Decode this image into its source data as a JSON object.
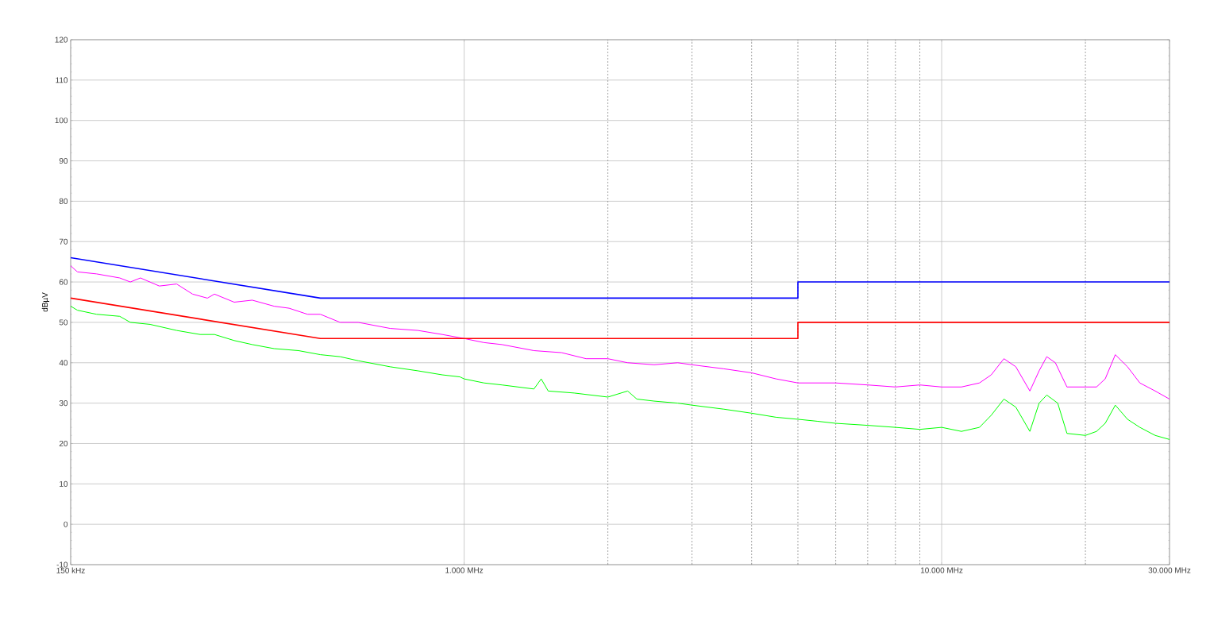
{
  "chart_data": {
    "type": "line",
    "ylabel": "dBµV",
    "log": "x",
    "grid": true,
    "xlim": [
      150,
      30000
    ],
    "ylim": [
      -10,
      120
    ],
    "xticks": [
      {
        "value": 150,
        "label": "150 kHz"
      },
      {
        "value": 1000,
        "label": "1.000 MHz"
      },
      {
        "value": 2000,
        "label": null
      },
      {
        "value": 3000,
        "label": null
      },
      {
        "value": 4000,
        "label": null
      },
      {
        "value": 5000,
        "label": null
      },
      {
        "value": 6000,
        "label": null
      },
      {
        "value": 7000,
        "label": null
      },
      {
        "value": 8000,
        "label": null
      },
      {
        "value": 9000,
        "label": null
      },
      {
        "value": 10000,
        "label": "10.000 MHz"
      },
      {
        "value": 20000,
        "label": null
      },
      {
        "value": 30000,
        "label": "30.000 MHz"
      }
    ],
    "yticks": [
      -10,
      0,
      10,
      20,
      30,
      40,
      50,
      60,
      70,
      80,
      90,
      100,
      110,
      120
    ],
    "series": [
      {
        "color": "#ff00ff",
        "x": [
          150,
          155,
          170,
          190,
          200,
          210,
          230,
          250,
          270,
          290,
          300,
          330,
          360,
          400,
          430,
          470,
          500,
          550,
          600,
          700,
          800,
          900,
          1000,
          1100,
          1200,
          1400,
          1600,
          1800,
          2000,
          2200,
          2500,
          2800,
          3000,
          3500,
          4000,
          4500,
          5000,
          6000,
          7000,
          8000,
          9000,
          10000,
          11000,
          12000,
          12700,
          13500,
          14300,
          15300,
          16000,
          16600,
          17300,
          18300,
          19500,
          21100,
          22000,
          23100,
          24500,
          26000,
          28000,
          30000
        ],
        "values": [
          64,
          62.5,
          62,
          61,
          60,
          61,
          59,
          59.5,
          57,
          56,
          57,
          55,
          55.5,
          54,
          53.5,
          52,
          52,
          50,
          50,
          48.5,
          48,
          47,
          46,
          45,
          44.5,
          43,
          42.5,
          41,
          41,
          40,
          39.5,
          40,
          39.5,
          38.5,
          37.5,
          36,
          35,
          35,
          34.5,
          34,
          34.5,
          34,
          34,
          35,
          37,
          41,
          39,
          33,
          38,
          41.5,
          40,
          34,
          34,
          34,
          36,
          42,
          39,
          35,
          33,
          31
        ]
      },
      {
        "color": "#00ff00",
        "x": [
          150,
          155,
          170,
          190,
          200,
          220,
          250,
          280,
          300,
          330,
          360,
          400,
          450,
          500,
          550,
          600,
          700,
          800,
          900,
          980,
          1000,
          1100,
          1200,
          1400,
          1450,
          1500,
          1700,
          2000,
          2200,
          2300,
          2500,
          2800,
          3000,
          3500,
          4000,
          4500,
          5000,
          5500,
          6000,
          7000,
          8000,
          9000,
          10000,
          11000,
          12000,
          12700,
          13500,
          14300,
          15300,
          16000,
          16600,
          17500,
          18300,
          20000,
          21100,
          22000,
          23100,
          24500,
          26000,
          28000,
          30000
        ],
        "values": [
          54,
          53,
          52,
          51.5,
          50,
          49.5,
          48,
          47,
          47,
          45.5,
          44.5,
          43.5,
          43,
          42,
          41.5,
          40.5,
          39,
          38,
          37,
          36.5,
          36,
          35,
          34.5,
          33.5,
          36,
          33,
          32.5,
          31.5,
          33,
          31,
          30.5,
          30,
          29.5,
          28.5,
          27.5,
          26.5,
          26,
          25.5,
          25,
          24.5,
          24,
          23.5,
          24,
          23,
          24,
          27,
          31,
          29,
          23,
          30,
          32,
          30,
          22.5,
          22,
          23,
          25,
          29.5,
          26,
          24,
          22,
          21
        ]
      },
      {
        "color": "#0000ff",
        "x": [
          150,
          500,
          5000,
          5000,
          30000
        ],
        "values": [
          66,
          56,
          56,
          60,
          60
        ]
      },
      {
        "color": "#ff0000",
        "x": [
          150,
          500,
          5000,
          5000,
          30000
        ],
        "values": [
          56,
          46,
          46,
          50,
          50
        ]
      }
    ]
  }
}
